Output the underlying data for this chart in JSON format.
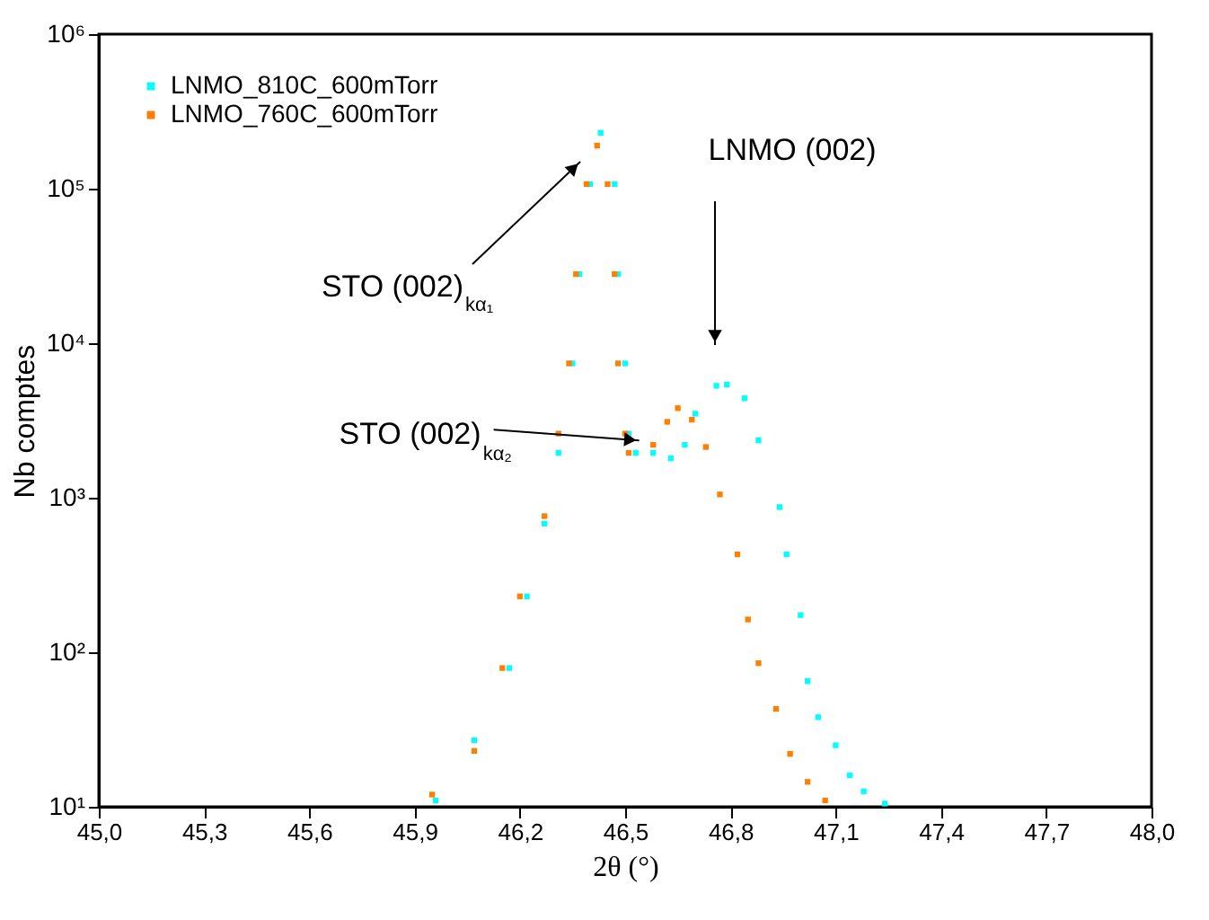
{
  "chart_data": {
    "type": "scatter",
    "xlabel": "2θ (°)",
    "ylabel": "Nb comptes",
    "log": "y",
    "marker": "square",
    "legend": "top left",
    "grid": false,
    "xlim": [
      45.0,
      48.0
    ],
    "ylim": [
      10,
      1000000
    ],
    "xticks": [
      {
        "value": 45.0,
        "label": "45,0"
      },
      {
        "value": 45.3,
        "label": "45,3"
      },
      {
        "value": 45.6,
        "label": "45,6"
      },
      {
        "value": 45.9,
        "label": "45,9"
      },
      {
        "value": 46.2,
        "label": "46,2"
      },
      {
        "value": 46.5,
        "label": "46,5"
      },
      {
        "value": 46.8,
        "label": "46,8"
      },
      {
        "value": 47.1,
        "label": "47,1"
      },
      {
        "value": 47.4,
        "label": "47,4"
      },
      {
        "value": 47.7,
        "label": "47,7"
      },
      {
        "value": 48.0,
        "label": "48,0"
      }
    ],
    "yticks": [
      {
        "value": 10,
        "label": "10¹"
      },
      {
        "value": 100,
        "label": "10²"
      },
      {
        "value": 1000,
        "label": "10³"
      },
      {
        "value": 10000,
        "label": "10⁴"
      },
      {
        "value": 100000,
        "label": "10⁵"
      },
      {
        "value": 1000000,
        "label": "10⁶"
      }
    ],
    "series": [
      {
        "name": "LNMO_810C_600mTorr",
        "color": "#00ffff",
        "x": [
          45.96,
          46.07,
          46.17,
          46.22,
          46.27,
          46.31,
          46.35,
          46.37,
          46.4,
          46.43,
          46.47,
          46.48,
          46.5,
          46.51,
          46.53,
          46.58,
          46.63,
          46.67,
          46.7,
          46.76,
          46.79,
          46.84,
          46.88,
          46.94,
          46.96,
          47.0,
          47.02,
          47.05,
          47.1,
          47.14,
          47.18,
          47.24
        ],
        "values": [
          11,
          27,
          79,
          230,
          680,
          1950,
          7400,
          28000,
          107000,
          230000,
          107000,
          28000,
          7400,
          2600,
          1950,
          1950,
          1800,
          2200,
          3500,
          5300,
          5400,
          4400,
          2350,
          870,
          430,
          174,
          65,
          38,
          25,
          16,
          12.6,
          10.5
        ]
      },
      {
        "name": "LNMO_760C_600mTorr",
        "color": "#ff7f00",
        "x": [
          45.95,
          46.07,
          46.15,
          46.2,
          46.27,
          46.31,
          46.34,
          46.36,
          46.39,
          46.42,
          46.45,
          46.47,
          46.48,
          46.5,
          46.51,
          46.58,
          46.62,
          46.65,
          46.69,
          46.73,
          46.77,
          46.82,
          46.85,
          46.88,
          46.93,
          46.97,
          47.02,
          47.07
        ],
        "values": [
          12,
          23,
          79,
          230,
          760,
          2600,
          7400,
          28000,
          107000,
          190000,
          107000,
          28000,
          7400,
          2600,
          1950,
          2200,
          3100,
          3800,
          3200,
          2130,
          1050,
          430,
          163,
          85,
          43,
          22,
          14.5,
          11
        ]
      }
    ],
    "annotations": [
      "STO (002)$_{kα₁}$",
      {
        "text": "STO (002)$_{kα₂}$",
        "x": 46.54,
        "y": 2350
      },
      "LNMO (002)"
    ]
  }
}
